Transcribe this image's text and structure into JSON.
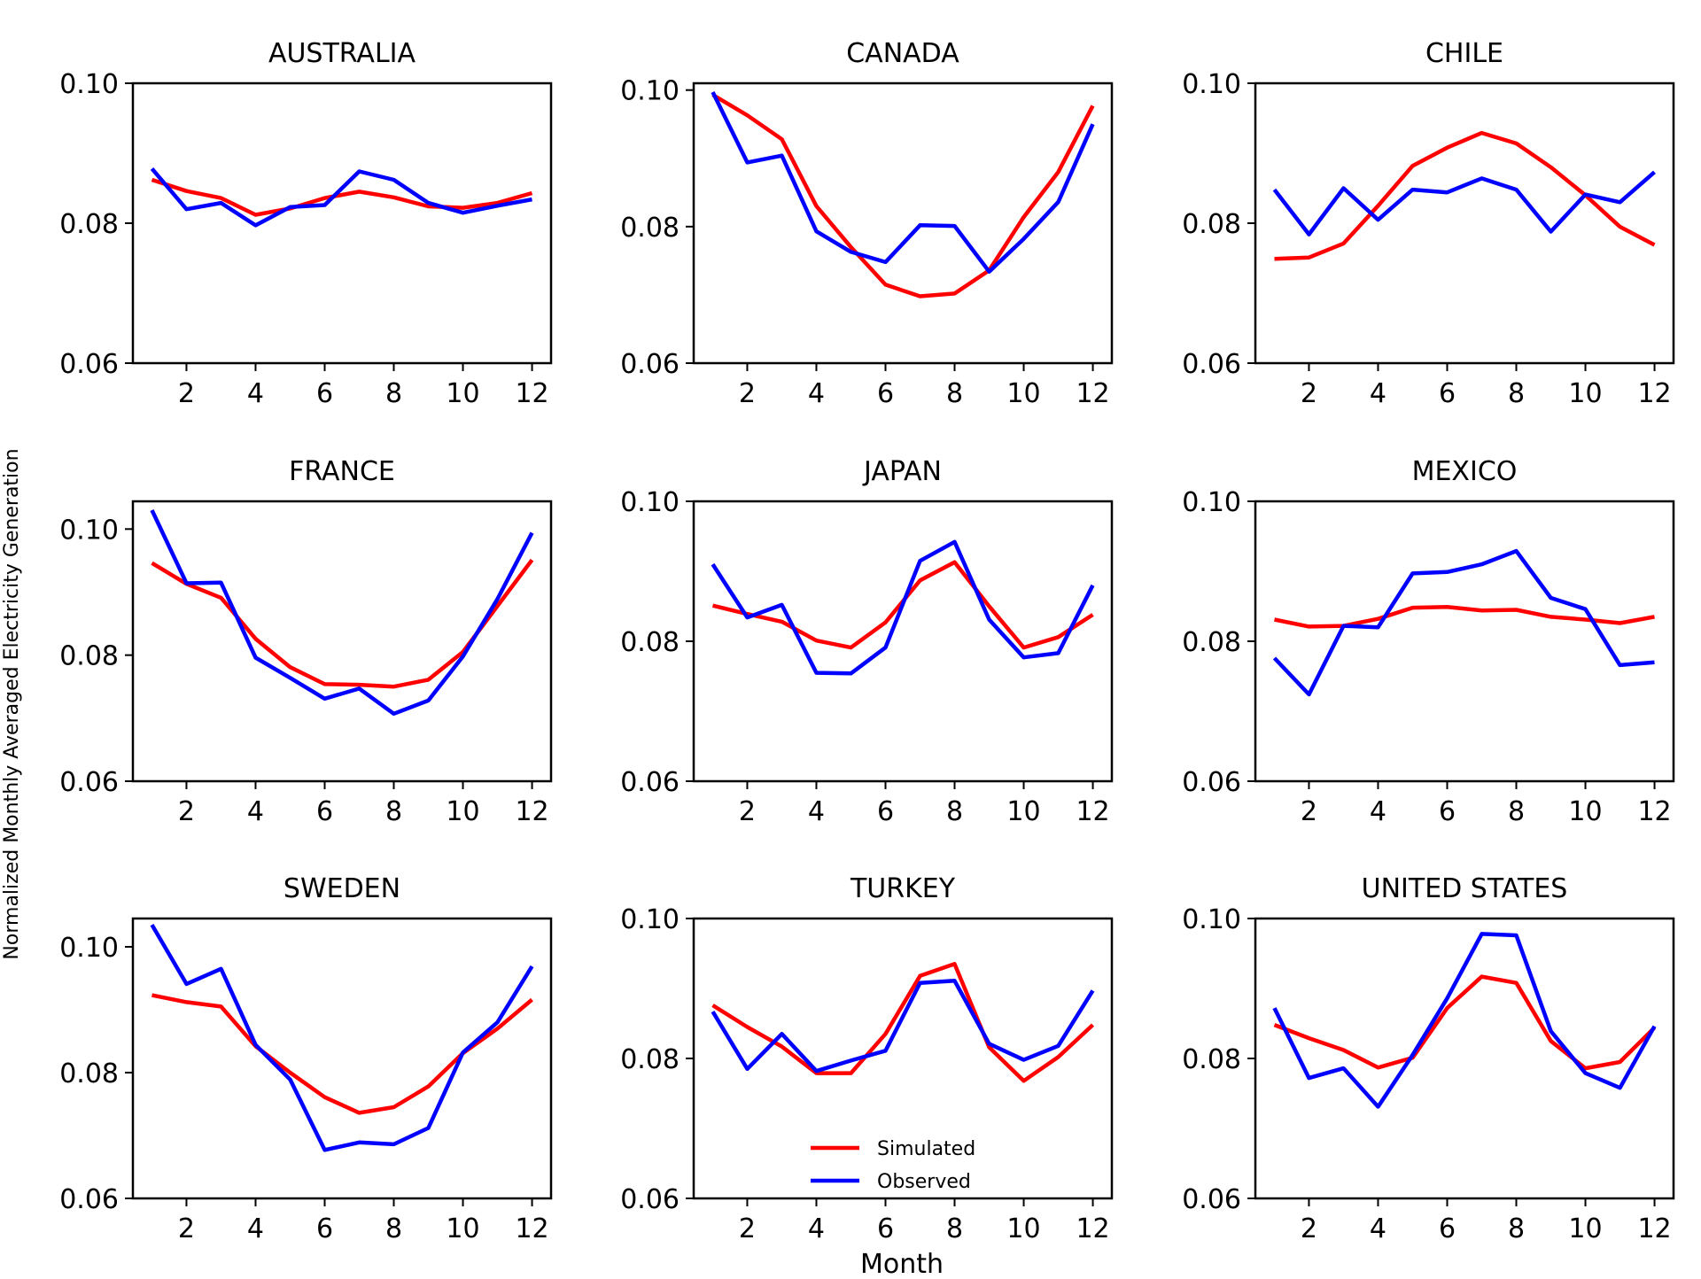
{
  "figure": {
    "xlabel": "Month",
    "ylabel": "Normalized Monthly Averaged Electricity Generation",
    "colors": {
      "simulated": "#ff0000",
      "observed": "#0000ff"
    }
  },
  "legend": {
    "items": [
      {
        "label": "Simulated",
        "color": "#ff0000"
      },
      {
        "label": "Observed",
        "color": "#0000ff"
      }
    ],
    "placement": "lower-center of TURKEY panel"
  },
  "chart_data": [
    {
      "type": "line",
      "title": "AUSTRALIA",
      "xlabel": "",
      "ylabel": "",
      "x": [
        1,
        2,
        3,
        4,
        5,
        6,
        7,
        8,
        9,
        10,
        11,
        12
      ],
      "xlim": [
        0.45,
        12.55
      ],
      "ylim": [
        0.06,
        0.1
      ],
      "xticks": [
        2,
        4,
        6,
        8,
        10,
        12
      ],
      "yticks": [
        "0.06",
        "0.08",
        "0.10"
      ],
      "series": [
        {
          "name": "Simulated",
          "color": "#ff0000",
          "values": [
            0.0862,
            0.0846,
            0.0836,
            0.0812,
            0.0821,
            0.0836,
            0.0845,
            0.0837,
            0.0824,
            0.0822,
            0.0829,
            0.0843
          ]
        },
        {
          "name": "Observed",
          "color": "#0000ff",
          "values": [
            0.0878,
            0.082,
            0.0829,
            0.0797,
            0.0823,
            0.0826,
            0.0874,
            0.0862,
            0.0829,
            0.0815,
            0.0825,
            0.0834
          ]
        }
      ]
    },
    {
      "type": "line",
      "title": "CANADA",
      "xlabel": "",
      "ylabel": "",
      "x": [
        1,
        2,
        3,
        4,
        5,
        6,
        7,
        8,
        9,
        10,
        11,
        12
      ],
      "xlim": [
        0.45,
        12.55
      ],
      "ylim": [
        0.06,
        0.101
      ],
      "xticks": [
        2,
        4,
        6,
        8,
        10,
        12
      ],
      "yticks": [
        "0.06",
        "0.08",
        "0.10"
      ],
      "series": [
        {
          "name": "Simulated",
          "color": "#ff0000",
          "values": [
            0.0993,
            0.0963,
            0.0928,
            0.083,
            0.077,
            0.0715,
            0.0698,
            0.0702,
            0.0736,
            0.0814,
            0.088,
            0.0977
          ]
        },
        {
          "name": "Observed",
          "color": "#0000ff",
          "values": [
            0.0997,
            0.0894,
            0.0904,
            0.0793,
            0.0763,
            0.0748,
            0.0802,
            0.0801,
            0.0734,
            0.0782,
            0.0836,
            0.095
          ]
        }
      ]
    },
    {
      "type": "line",
      "title": "CHILE",
      "xlabel": "",
      "ylabel": "",
      "x": [
        1,
        2,
        3,
        4,
        5,
        6,
        7,
        8,
        9,
        10,
        11,
        12
      ],
      "xlim": [
        0.45,
        12.55
      ],
      "ylim": [
        0.06,
        0.1
      ],
      "xticks": [
        2,
        4,
        6,
        8,
        10,
        12
      ],
      "yticks": [
        "0.06",
        "0.08",
        "0.10"
      ],
      "series": [
        {
          "name": "Simulated",
          "color": "#ff0000",
          "values": [
            0.0749,
            0.0751,
            0.0771,
            0.0825,
            0.0882,
            0.0908,
            0.0929,
            0.0914,
            0.088,
            0.084,
            0.0795,
            0.0769
          ]
        },
        {
          "name": "Observed",
          "color": "#0000ff",
          "values": [
            0.0848,
            0.0784,
            0.085,
            0.0805,
            0.0848,
            0.0844,
            0.0864,
            0.0848,
            0.0788,
            0.0841,
            0.083,
            0.0873
          ]
        }
      ]
    },
    {
      "type": "line",
      "title": "FRANCE",
      "xlabel": "",
      "ylabel": "",
      "x": [
        1,
        2,
        3,
        4,
        5,
        6,
        7,
        8,
        9,
        10,
        11,
        12
      ],
      "xlim": [
        0.45,
        12.55
      ],
      "ylim": [
        0.06,
        0.1044
      ],
      "xticks": [
        2,
        4,
        6,
        8,
        10,
        12
      ],
      "yticks": [
        "0.06",
        "0.08",
        "0.10"
      ],
      "series": [
        {
          "name": "Simulated",
          "color": "#ff0000",
          "values": [
            0.0946,
            0.0913,
            0.0891,
            0.0826,
            0.0781,
            0.0754,
            0.0753,
            0.075,
            0.0761,
            0.0805,
            0.0878,
            0.0951
          ]
        },
        {
          "name": "Observed",
          "color": "#0000ff",
          "values": [
            0.103,
            0.0914,
            0.0915,
            0.0796,
            0.0764,
            0.0731,
            0.0747,
            0.0707,
            0.0728,
            0.0798,
            0.0889,
            0.0994
          ]
        }
      ]
    },
    {
      "type": "line",
      "title": "JAPAN",
      "xlabel": "",
      "ylabel": "",
      "x": [
        1,
        2,
        3,
        4,
        5,
        6,
        7,
        8,
        9,
        10,
        11,
        12
      ],
      "xlim": [
        0.45,
        12.55
      ],
      "ylim": [
        0.06,
        0.1
      ],
      "xticks": [
        2,
        4,
        6,
        8,
        10,
        12
      ],
      "yticks": [
        "0.06",
        "0.08",
        "0.10"
      ],
      "series": [
        {
          "name": "Simulated",
          "color": "#ff0000",
          "values": [
            0.0851,
            0.0839,
            0.0828,
            0.0801,
            0.0791,
            0.0827,
            0.0887,
            0.0913,
            0.085,
            0.0791,
            0.0806,
            0.0838
          ]
        },
        {
          "name": "Observed",
          "color": "#0000ff",
          "values": [
            0.091,
            0.0834,
            0.0852,
            0.0755,
            0.0754,
            0.0791,
            0.0915,
            0.0942,
            0.0831,
            0.0777,
            0.0783,
            0.088
          ]
        }
      ]
    },
    {
      "type": "line",
      "title": "MEXICO",
      "xlabel": "",
      "ylabel": "",
      "x": [
        1,
        2,
        3,
        4,
        5,
        6,
        7,
        8,
        9,
        10,
        11,
        12
      ],
      "xlim": [
        0.45,
        12.55
      ],
      "ylim": [
        0.06,
        0.1
      ],
      "xticks": [
        2,
        4,
        6,
        8,
        10,
        12
      ],
      "yticks": [
        "0.06",
        "0.08",
        "0.10"
      ],
      "series": [
        {
          "name": "Simulated",
          "color": "#ff0000",
          "values": [
            0.0831,
            0.0821,
            0.0822,
            0.0832,
            0.0848,
            0.0849,
            0.0844,
            0.0845,
            0.0835,
            0.0831,
            0.0826,
            0.0835
          ]
        },
        {
          "name": "Observed",
          "color": "#0000ff",
          "values": [
            0.0776,
            0.0724,
            0.0822,
            0.082,
            0.0897,
            0.0899,
            0.091,
            0.0929,
            0.0862,
            0.0846,
            0.0766,
            0.077
          ]
        }
      ]
    },
    {
      "type": "line",
      "title": "SWEDEN",
      "xlabel": "",
      "ylabel": "",
      "x": [
        1,
        2,
        3,
        4,
        5,
        6,
        7,
        8,
        9,
        10,
        11,
        12
      ],
      "xlim": [
        0.45,
        12.55
      ],
      "ylim": [
        0.06,
        0.1045
      ],
      "xticks": [
        2,
        4,
        6,
        8,
        10,
        12
      ],
      "yticks": [
        "0.06",
        "0.08",
        "0.10"
      ],
      "series": [
        {
          "name": "Simulated",
          "color": "#ff0000",
          "values": [
            0.0923,
            0.0912,
            0.0905,
            0.0842,
            0.08,
            0.0761,
            0.0736,
            0.0745,
            0.0778,
            0.0831,
            0.087,
            0.0916
          ]
        },
        {
          "name": "Observed",
          "color": "#0000ff",
          "values": [
            0.1035,
            0.0941,
            0.0965,
            0.0844,
            0.0789,
            0.0677,
            0.0689,
            0.0686,
            0.0712,
            0.0832,
            0.088,
            0.0969
          ]
        }
      ]
    },
    {
      "type": "line",
      "title": "TURKEY",
      "xlabel": "Month",
      "ylabel": "",
      "x": [
        1,
        2,
        3,
        4,
        5,
        6,
        7,
        8,
        9,
        10,
        11,
        12
      ],
      "xlim": [
        0.45,
        12.55
      ],
      "ylim": [
        0.06,
        0.1
      ],
      "xticks": [
        2,
        4,
        6,
        8,
        10,
        12
      ],
      "yticks": [
        "0.06",
        "0.08",
        "0.10"
      ],
      "series": [
        {
          "name": "Simulated",
          "color": "#ff0000",
          "values": [
            0.0876,
            0.0845,
            0.0817,
            0.0779,
            0.0779,
            0.0835,
            0.0918,
            0.0935,
            0.0816,
            0.0768,
            0.0802,
            0.0848
          ]
        },
        {
          "name": "Observed",
          "color": "#0000ff",
          "values": [
            0.0867,
            0.0785,
            0.0835,
            0.0782,
            0.0797,
            0.0811,
            0.0908,
            0.0911,
            0.0821,
            0.0798,
            0.0818,
            0.0897
          ]
        }
      ]
    },
    {
      "type": "line",
      "title": "UNITED STATES",
      "xlabel": "",
      "ylabel": "",
      "x": [
        1,
        2,
        3,
        4,
        5,
        6,
        7,
        8,
        9,
        10,
        11,
        12
      ],
      "xlim": [
        0.45,
        12.55
      ],
      "ylim": [
        0.06,
        0.1
      ],
      "xticks": [
        2,
        4,
        6,
        8,
        10,
        12
      ],
      "yticks": [
        "0.06",
        "0.08",
        "0.10"
      ],
      "series": [
        {
          "name": "Simulated",
          "color": "#ff0000",
          "values": [
            0.0848,
            0.0829,
            0.0812,
            0.0787,
            0.0801,
            0.0872,
            0.0917,
            0.0908,
            0.0825,
            0.0786,
            0.0795,
            0.0844
          ]
        },
        {
          "name": "Observed",
          "color": "#0000ff",
          "values": [
            0.0872,
            0.0772,
            0.0786,
            0.0731,
            0.0805,
            0.0886,
            0.0978,
            0.0976,
            0.0839,
            0.0779,
            0.0758,
            0.0846
          ]
        }
      ]
    }
  ]
}
